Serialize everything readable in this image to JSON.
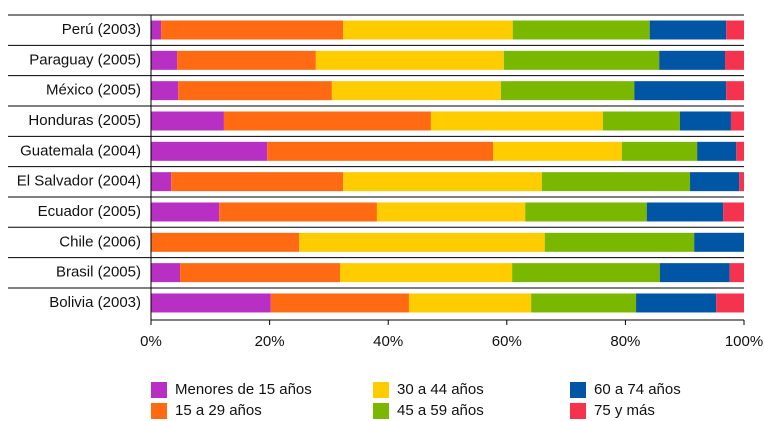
{
  "chart_data": {
    "type": "stacked-bar-horizontal",
    "categories": [
      "Perú (2003)",
      "Paraguay (2005)",
      "México (2005)",
      "Honduras (2005)",
      "Guatemala (2004)",
      "El Salvador (2004)",
      "Ecuador (2005)",
      "Chile (2006)",
      "Brasil (2005)",
      "Bolivia (2003)"
    ],
    "series": [
      {
        "name": "Menores de 15 años",
        "color": "#b82fc4",
        "values": [
          1.7,
          4.4,
          4.6,
          12.3,
          19.6,
          3.4,
          11.5,
          0,
          4.9,
          20.2
        ]
      },
      {
        "name": "15 a 29 años",
        "color": "#ff6a13",
        "values": [
          30.7,
          23.4,
          25.9,
          34.9,
          38.1,
          29.0,
          26.6,
          25.0,
          27.0,
          23.3
        ]
      },
      {
        "name": "30 a 44 años",
        "color": "#ffcc00",
        "values": [
          28.6,
          31.7,
          28.5,
          29.0,
          21.7,
          33.5,
          25.0,
          41.4,
          29.0,
          20.6
        ]
      },
      {
        "name": "45 a 59 años",
        "color": "#7ab800",
        "values": [
          23.1,
          26.2,
          22.5,
          13.0,
          12.7,
          25.0,
          20.5,
          25.2,
          24.9,
          17.7
        ]
      },
      {
        "name": "60 a 74 años",
        "color": "#0055a5",
        "values": [
          12.9,
          11.1,
          15.5,
          8.6,
          6.6,
          8.3,
          12.9,
          8.4,
          11.8,
          13.5
        ]
      },
      {
        "name": "75 y más",
        "color": "#f5334f",
        "values": [
          3.0,
          3.2,
          3.0,
          2.2,
          1.3,
          0.8,
          3.5,
          0,
          2.4,
          4.7
        ]
      }
    ],
    "xlim": [
      0,
      100
    ],
    "xticks": [
      {
        "value": 0,
        "label": "0%"
      },
      {
        "value": 20,
        "label": "20%"
      },
      {
        "value": 40,
        "label": "40%"
      },
      {
        "value": 60,
        "label": "60%"
      },
      {
        "value": 80,
        "label": "80%"
      },
      {
        "value": 100,
        "label": "100%"
      }
    ],
    "legend": "bottom"
  }
}
